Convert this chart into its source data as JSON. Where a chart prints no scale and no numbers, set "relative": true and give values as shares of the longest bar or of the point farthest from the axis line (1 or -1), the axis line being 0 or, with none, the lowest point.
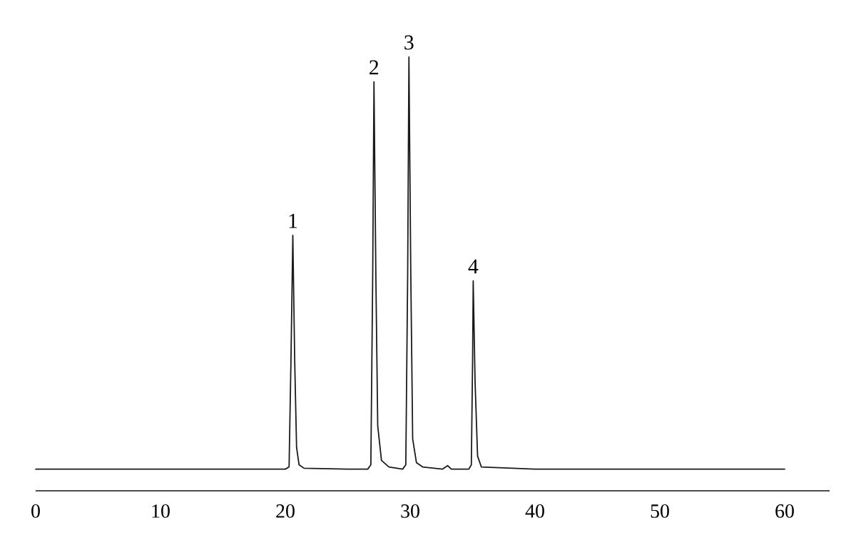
{
  "chart_data": {
    "type": "line",
    "relative": true,
    "xlim": [
      0,
      63.6
    ],
    "xticks": [
      0,
      10,
      20,
      30,
      40,
      50,
      60
    ],
    "grid": false,
    "marker": "none",
    "line_style": "solid",
    "series": [
      {
        "color": "#1a1a1a",
        "x": [
          0,
          5,
          10,
          15,
          20,
          20.3,
          20.45,
          20.6,
          20.75,
          20.9,
          21.1,
          21.5,
          25,
          26.6,
          26.85,
          27.0,
          27.1,
          27.25,
          27.4,
          27.7,
          28.3,
          29.4,
          29.65,
          29.8,
          29.9,
          30.05,
          30.2,
          30.5,
          31,
          32.6,
          33.0,
          33.3,
          34.7,
          34.9,
          35.0,
          35.05,
          35.2,
          35.4,
          35.7,
          40,
          50,
          60
        ],
        "values": [
          0.05,
          0.05,
          0.05,
          0.05,
          0.05,
          0.055,
          0.3,
          0.589,
          0.3,
          0.1,
          0.06,
          0.052,
          0.05,
          0.05,
          0.06,
          0.5,
          0.943,
          0.5,
          0.15,
          0.07,
          0.055,
          0.05,
          0.06,
          0.5,
          1,
          0.5,
          0.12,
          0.065,
          0.055,
          0.05,
          0.058,
          0.05,
          0.05,
          0.06,
          0.3,
          0.484,
          0.25,
          0.08,
          0.055,
          0.05,
          0.05,
          0.05
        ]
      }
    ],
    "annotations": [
      {
        "text": "1",
        "x": 20.6,
        "y": 0.589
      },
      {
        "text": "2",
        "x": 27.1,
        "y": 0.943
      },
      {
        "text": "3",
        "x": 29.9,
        "y": 1
      },
      {
        "text": "4",
        "x": 35.05,
        "y": 0.484
      }
    ]
  }
}
